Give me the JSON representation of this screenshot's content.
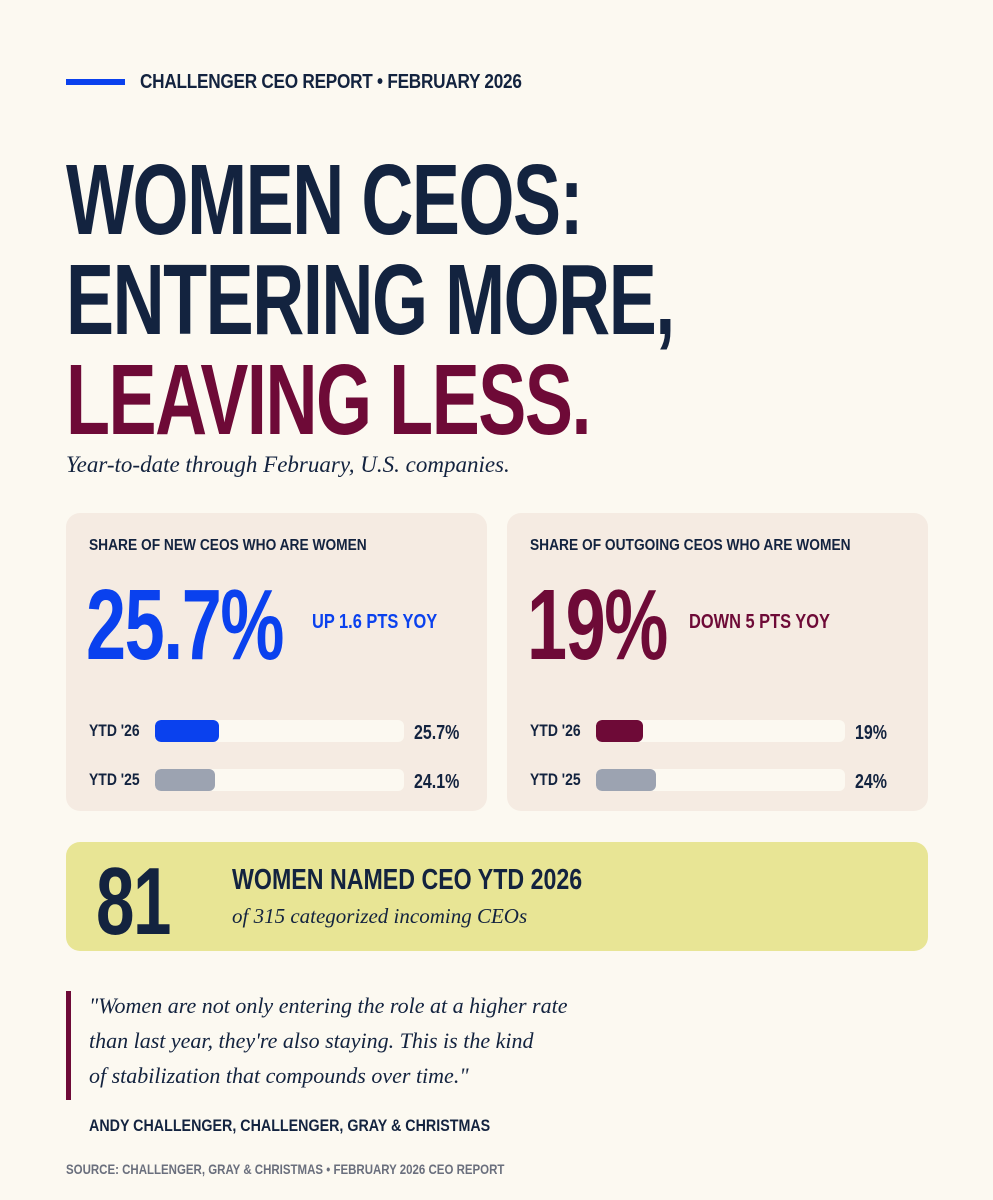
{
  "header": {
    "kicker": "CHALLENGER CEO REPORT  •  FEBRUARY 2026"
  },
  "headline": {
    "line1": "WOMEN CEOS:",
    "line2": "ENTERING MORE,",
    "line3": "LEAVING LESS."
  },
  "subtitle": "Year-to-date through February, U.S. companies.",
  "colors": {
    "accent_blue": "#0a41ee",
    "accent_maroon": "#6e0a37",
    "navy": "#13233f",
    "muted_gray": "#9ca3b1",
    "callout_yellow": "#e8e595",
    "card_bg": "#f5ebe2",
    "page_bg": "#fcf9f1"
  },
  "cards": [
    {
      "label": "SHARE OF NEW CEOS WHO ARE WOMEN",
      "big_value": "25.7%",
      "delta": "UP 1.6 PTS YOY",
      "bars": [
        {
          "label": "YTD '26",
          "value_text": "25.7%",
          "fraction": 0.257,
          "color": "#0a41ee"
        },
        {
          "label": "YTD '25",
          "value_text": "24.1%",
          "fraction": 0.241,
          "color": "#9ca3b1"
        }
      ]
    },
    {
      "label": "SHARE OF OUTGOING CEOS WHO ARE WOMEN",
      "big_value": "19%",
      "delta": "DOWN 5 PTS YOY",
      "bars": [
        {
          "label": "YTD '26",
          "value_text": "19%",
          "fraction": 0.19,
          "color": "#6e0a37"
        },
        {
          "label": "YTD '25",
          "value_text": "24%",
          "fraction": 0.24,
          "color": "#9ca3b1"
        }
      ]
    }
  ],
  "callout": {
    "number": "81",
    "title": "WOMEN NAMED CEO YTD 2026",
    "subtitle": "of 315 categorized incoming CEOs"
  },
  "quote": {
    "lines": [
      "\"Women are not only entering the role at a higher rate",
      "than last year, they're also staying. This is the kind",
      "of stabilization that compounds over time.\""
    ],
    "attribution": "ANDY CHALLENGER, CHALLENGER, GRAY & CHRISTMAS"
  },
  "source": "SOURCE: CHALLENGER, GRAY & CHRISTMAS  •  FEBRUARY 2026 CEO REPORT"
}
